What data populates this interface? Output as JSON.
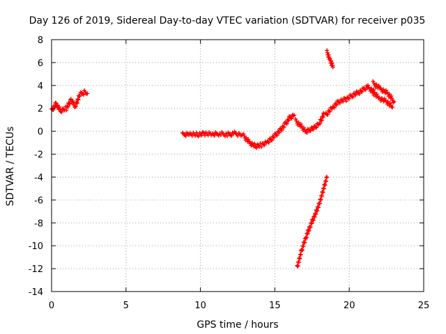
{
  "chart_data": {
    "type": "scatter",
    "title": "Day 126 of 2019, Sidereal Day-to-day VTEC variation (SDTVAR) for receiver p035",
    "xlabel": "GPS time / hours",
    "ylabel": "SDTVAR / TECUs",
    "xlim": [
      0,
      25
    ],
    "ylim": [
      -14,
      8
    ],
    "xticks": [
      0,
      5,
      10,
      15,
      20,
      25
    ],
    "yticks": [
      -14,
      -12,
      -10,
      -8,
      -6,
      -4,
      -2,
      0,
      2,
      4,
      6,
      8
    ],
    "grid": true,
    "marker": "plus",
    "series_color": "#ff0000",
    "series": [
      {
        "segments": [
          {
            "x": [
              0.0,
              0.3,
              0.6,
              1.0,
              1.3,
              1.6,
              1.9,
              2.2,
              2.4
            ],
            "y": [
              1.8,
              2.4,
              1.8,
              2.0,
              2.7,
              2.2,
              3.2,
              3.4,
              3.3
            ]
          },
          {
            "x": [
              8.8,
              9.3,
              9.8,
              10.3,
              10.8,
              11.3,
              11.8,
              12.3,
              12.8
            ],
            "y": [
              -0.3,
              -0.2,
              -0.3,
              -0.2,
              -0.3,
              -0.2,
              -0.3,
              -0.2,
              -0.3
            ]
          },
          {
            "x": [
              12.9,
              13.3,
              13.7,
              14.1,
              14.5,
              14.9,
              15.3,
              15.7,
              16.0,
              16.3
            ],
            "y": [
              -0.4,
              -1.0,
              -1.3,
              -1.2,
              -1.0,
              -0.5,
              0.0,
              0.6,
              1.2,
              1.4
            ]
          },
          {
            "x": [
              16.4,
              16.8,
              17.1,
              17.4,
              17.7,
              18.0,
              18.3
            ],
            "y": [
              0.9,
              0.4,
              0.0,
              0.2,
              0.3,
              0.7,
              1.5
            ]
          },
          {
            "x": [
              18.4,
              18.9,
              19.3,
              19.8,
              20.3,
              20.8,
              21.2,
              21.7
            ],
            "y": [
              1.4,
              2.1,
              2.6,
              2.8,
              3.2,
              3.5,
              3.9,
              3.4
            ]
          },
          {
            "x": [
              21.5,
              22.0,
              22.5,
              22.9
            ],
            "y": [
              3.5,
              2.9,
              2.6,
              2.1
            ]
          },
          {
            "x": [
              21.6,
              22.1,
              22.6,
              23.0
            ],
            "y": [
              4.2,
              3.7,
              3.3,
              2.6
            ]
          },
          {
            "x": [
              18.5,
              18.7,
              18.9
            ],
            "y": [
              6.9,
              6.3,
              5.6
            ]
          },
          {
            "x": [
              16.5,
              16.8,
              17.1,
              17.4,
              17.7,
              18.0,
              18.3,
              18.5
            ],
            "y": [
              -11.9,
              -10.4,
              -9.2,
              -8.2,
              -7.3,
              -6.3,
              -4.9,
              -4.0
            ]
          }
        ]
      }
    ]
  }
}
